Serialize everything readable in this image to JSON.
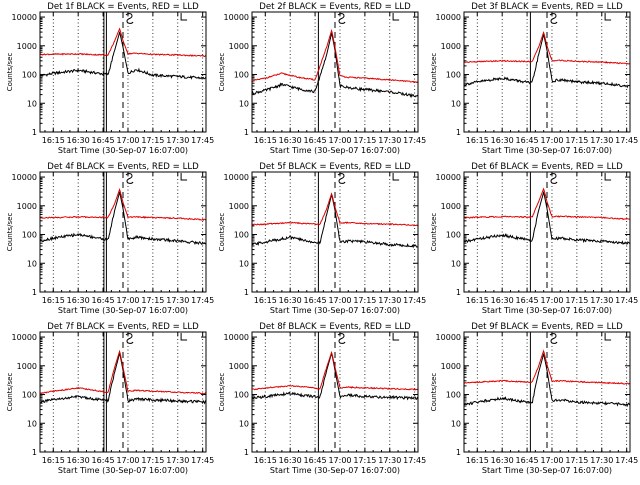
{
  "chart_data": [
    {
      "type": "line",
      "title": "Det 1f BLACK = Events, RED = LLD",
      "xlabel": "Start Time (30-Sep-07 16:07:00)",
      "ylabel": "Counts/sec",
      "yscale": "log",
      "ylim": [
        1,
        15000
      ],
      "xlim": [
        "16:07",
        "17:47"
      ],
      "x_ticks": [
        "16:15",
        "16:30",
        "16:45",
        "17:00",
        "17:15",
        "17:30",
        "17:45"
      ],
      "y_ticks": [
        "1",
        "10",
        "100",
        "1000",
        "10000"
      ],
      "grid": "vertical dotted",
      "series": [
        {
          "name": "Events",
          "color": "#000000",
          "x": [
            "16:07",
            "16:15",
            "16:30",
            "16:40",
            "16:48",
            "16:52",
            "16:55",
            "16:57",
            "17:00",
            "17:05",
            "17:15",
            "17:30",
            "17:45"
          ],
          "y": [
            90,
            110,
            140,
            115,
            100,
            700,
            3000,
            900,
            110,
            150,
            95,
            85,
            75
          ]
        },
        {
          "name": "LLD",
          "color": "#e00000",
          "x": [
            "16:07",
            "16:15",
            "16:30",
            "16:40",
            "16:48",
            "16:52",
            "16:55",
            "16:57",
            "17:00",
            "17:05",
            "17:15",
            "17:30",
            "17:45"
          ],
          "y": [
            500,
            510,
            520,
            490,
            480,
            1500,
            4000,
            1500,
            530,
            550,
            500,
            480,
            440
          ]
        }
      ],
      "vlines_solid": [
        "16:45:30",
        "16:47"
      ],
      "vline_dashed": "16:57"
    },
    {
      "type": "line",
      "title": "Det 2f BLACK = Events, RED = LLD",
      "xlabel": "Start Time (30-Sep-07 16:07:00)",
      "ylabel": "Counts/sec",
      "yscale": "log",
      "ylim": [
        1,
        15000
      ],
      "xlim": [
        "16:07",
        "17:47"
      ],
      "x_ticks": [
        "16:15",
        "16:30",
        "16:45",
        "17:00",
        "17:15",
        "17:30",
        "17:45"
      ],
      "y_ticks": [
        "1",
        "10",
        "100",
        "1000",
        "10000"
      ],
      "grid": "vertical dotted",
      "series": [
        {
          "name": "Events",
          "color": "#000000",
          "x": [
            "16:07",
            "16:15",
            "16:25",
            "16:35",
            "16:45",
            "16:52",
            "16:55",
            "16:57",
            "17:00",
            "17:05",
            "17:15",
            "17:30",
            "17:45"
          ],
          "y": [
            22,
            28,
            45,
            32,
            25,
            500,
            2800,
            700,
            40,
            35,
            30,
            25,
            18
          ]
        },
        {
          "name": "LLD",
          "color": "#e00000",
          "x": [
            "16:07",
            "16:15",
            "16:25",
            "16:35",
            "16:45",
            "16:52",
            "16:55",
            "16:57",
            "17:00",
            "17:05",
            "17:15",
            "17:30",
            "17:45"
          ],
          "y": [
            60,
            75,
            110,
            80,
            65,
            900,
            3500,
            900,
            90,
            80,
            75,
            65,
            55
          ]
        }
      ],
      "vlines_solid": [
        "16:47"
      ],
      "vline_dashed": "16:57"
    },
    {
      "type": "line",
      "title": "Det 3f BLACK = Events, RED = LLD",
      "xlabel": "Start Time (30-Sep-07 16:07:00)",
      "ylabel": "Counts/sec",
      "yscale": "log",
      "ylim": [
        1,
        15000
      ],
      "xlim": [
        "16:07",
        "17:47"
      ],
      "x_ticks": [
        "16:15",
        "16:30",
        "16:45",
        "17:00",
        "17:15",
        "17:30",
        "17:45"
      ],
      "y_ticks": [
        "1",
        "10",
        "100",
        "1000",
        "10000"
      ],
      "grid": "vertical dotted",
      "series": [
        {
          "name": "Events",
          "color": "#000000",
          "x": [
            "16:07",
            "16:15",
            "16:30",
            "16:40",
            "16:48",
            "16:52",
            "16:55",
            "16:57",
            "17:00",
            "17:05",
            "17:15",
            "17:30",
            "17:45"
          ],
          "y": [
            45,
            55,
            75,
            60,
            50,
            500,
            2500,
            700,
            60,
            65,
            55,
            50,
            40
          ]
        },
        {
          "name": "LLD",
          "color": "#e00000",
          "x": [
            "16:07",
            "16:15",
            "16:30",
            "16:40",
            "16:48",
            "16:52",
            "16:55",
            "16:57",
            "17:00",
            "17:05",
            "17:15",
            "17:30",
            "17:45"
          ],
          "y": [
            270,
            280,
            300,
            290,
            280,
            900,
            3000,
            1000,
            300,
            310,
            290,
            270,
            240
          ]
        }
      ],
      "vlines_solid": [
        "16:47"
      ],
      "vline_dashed": "16:57"
    },
    {
      "type": "line",
      "title": "Det 4f BLACK = Events, RED = LLD",
      "xlabel": "Start Time (30-Sep-07 16:07:00)",
      "ylabel": "Counts/sec",
      "yscale": "log",
      "ylim": [
        1,
        15000
      ],
      "xlim": [
        "16:07",
        "17:47"
      ],
      "x_ticks": [
        "16:15",
        "16:30",
        "16:45",
        "17:00",
        "17:15",
        "17:30",
        "17:45"
      ],
      "y_ticks": [
        "1",
        "10",
        "100",
        "1000",
        "10000"
      ],
      "grid": "vertical dotted",
      "series": [
        {
          "name": "Events",
          "color": "#000000",
          "x": [
            "16:07",
            "16:15",
            "16:30",
            "16:40",
            "16:48",
            "16:52",
            "16:55",
            "16:57",
            "17:00",
            "17:05",
            "17:15",
            "17:30",
            "17:45"
          ],
          "y": [
            60,
            75,
            100,
            80,
            65,
            700,
            3000,
            800,
            70,
            80,
            70,
            60,
            50
          ]
        },
        {
          "name": "LLD",
          "color": "#e00000",
          "x": [
            "16:07",
            "16:15",
            "16:30",
            "16:40",
            "16:48",
            "16:52",
            "16:55",
            "16:57",
            "17:00",
            "17:05",
            "17:15",
            "17:30",
            "17:45"
          ],
          "y": [
            380,
            390,
            410,
            400,
            390,
            1200,
            3800,
            1300,
            400,
            410,
            390,
            370,
            330
          ]
        }
      ],
      "vlines_solid": [
        "16:45:30",
        "16:47"
      ],
      "vline_dashed": "16:57"
    },
    {
      "type": "line",
      "title": "Det 5f BLACK = Events, RED = LLD",
      "xlabel": "Start Time (30-Sep-07 16:07:00)",
      "ylabel": "Counts/sec",
      "yscale": "log",
      "ylim": [
        1,
        15000
      ],
      "xlim": [
        "16:07",
        "17:47"
      ],
      "x_ticks": [
        "16:15",
        "16:30",
        "16:45",
        "17:00",
        "17:15",
        "17:30",
        "17:45"
      ],
      "y_ticks": [
        "1",
        "10",
        "100",
        "1000",
        "10000"
      ],
      "grid": "vertical dotted",
      "series": [
        {
          "name": "Events",
          "color": "#000000",
          "x": [
            "16:07",
            "16:15",
            "16:30",
            "16:40",
            "16:48",
            "16:52",
            "16:55",
            "16:57",
            "17:00",
            "17:05",
            "17:15",
            "17:30",
            "17:45"
          ],
          "y": [
            45,
            55,
            80,
            60,
            50,
            500,
            2500,
            700,
            55,
            60,
            55,
            45,
            40
          ]
        },
        {
          "name": "LLD",
          "color": "#e00000",
          "x": [
            "16:07",
            "16:15",
            "16:30",
            "16:40",
            "16:48",
            "16:52",
            "16:55",
            "16:57",
            "17:00",
            "17:05",
            "17:15",
            "17:30",
            "17:45"
          ],
          "y": [
            220,
            230,
            260,
            240,
            230,
            800,
            2700,
            900,
            250,
            260,
            240,
            230,
            210
          ]
        }
      ],
      "vlines_solid": [
        "16:47"
      ],
      "vline_dashed": "16:57"
    },
    {
      "type": "line",
      "title": "Det 6f BLACK = Events, RED = LLD",
      "xlabel": "Start Time (30-Sep-07 16:07:00)",
      "ylabel": "Counts/sec",
      "yscale": "log",
      "ylim": [
        1,
        15000
      ],
      "xlim": [
        "16:07",
        "17:47"
      ],
      "x_ticks": [
        "16:15",
        "16:30",
        "16:45",
        "17:00",
        "17:15",
        "17:30",
        "17:45"
      ],
      "y_ticks": [
        "1",
        "10",
        "100",
        "1000",
        "10000"
      ],
      "grid": "vertical dotted",
      "series": [
        {
          "name": "Events",
          "color": "#000000",
          "x": [
            "16:07",
            "16:15",
            "16:30",
            "16:40",
            "16:48",
            "16:52",
            "16:55",
            "16:57",
            "17:00",
            "17:05",
            "17:15",
            "17:30",
            "17:45"
          ],
          "y": [
            55,
            70,
            95,
            75,
            60,
            700,
            3000,
            800,
            70,
            75,
            65,
            58,
            50
          ]
        },
        {
          "name": "LLD",
          "color": "#e00000",
          "x": [
            "16:07",
            "16:15",
            "16:30",
            "16:40",
            "16:48",
            "16:52",
            "16:55",
            "16:57",
            "17:00",
            "17:05",
            "17:15",
            "17:30",
            "17:45"
          ],
          "y": [
            380,
            400,
            420,
            410,
            400,
            1400,
            4000,
            1400,
            420,
            430,
            410,
            390,
            340
          ]
        }
      ],
      "vlines_solid": [
        "16:47"
      ],
      "vline_dashed": "16:57"
    },
    {
      "type": "line",
      "title": "Det 7f BLACK = Events, RED = LLD",
      "xlabel": "Start Time (30-Sep-07 16:07:00)",
      "ylabel": "Counts/sec",
      "yscale": "log",
      "ylim": [
        1,
        15000
      ],
      "xlim": [
        "16:07",
        "17:47"
      ],
      "x_ticks": [
        "16:15",
        "16:30",
        "16:45",
        "17:00",
        "17:15",
        "17:30",
        "17:45"
      ],
      "y_ticks": [
        "1",
        "10",
        "100",
        "1000",
        "10000"
      ],
      "grid": "vertical dotted",
      "series": [
        {
          "name": "Events",
          "color": "#000000",
          "x": [
            "16:07",
            "16:15",
            "16:30",
            "16:40",
            "16:48",
            "16:52",
            "16:55",
            "16:57",
            "17:00",
            "17:05",
            "17:15",
            "17:30",
            "17:45"
          ],
          "y": [
            55,
            65,
            85,
            70,
            60,
            600,
            2800,
            700,
            60,
            70,
            65,
            60,
            55
          ]
        },
        {
          "name": "LLD",
          "color": "#e00000",
          "x": [
            "16:07",
            "16:15",
            "16:30",
            "16:40",
            "16:48",
            "16:52",
            "16:55",
            "16:57",
            "17:00",
            "17:05",
            "17:15",
            "17:30",
            "17:45"
          ],
          "y": [
            110,
            130,
            170,
            140,
            120,
            900,
            3300,
            900,
            130,
            140,
            130,
            120,
            110
          ]
        }
      ],
      "vlines_solid": [
        "16:45:30",
        "16:47"
      ],
      "vline_dashed": "16:57"
    },
    {
      "type": "line",
      "title": "Det 8f BLACK = Events, RED = LLD",
      "xlabel": "Start Time (30-Sep-07 16:07:00)",
      "ylabel": "Counts/sec",
      "yscale": "log",
      "ylim": [
        1,
        15000
      ],
      "xlim": [
        "16:07",
        "17:47"
      ],
      "x_ticks": [
        "16:15",
        "16:30",
        "16:45",
        "17:00",
        "17:15",
        "17:30",
        "17:45"
      ],
      "y_ticks": [
        "1",
        "10",
        "100",
        "1000",
        "10000"
      ],
      "grid": "vertical dotted",
      "series": [
        {
          "name": "Events",
          "color": "#000000",
          "x": [
            "16:07",
            "16:15",
            "16:30",
            "16:40",
            "16:48",
            "16:52",
            "16:55",
            "16:57",
            "17:00",
            "17:05",
            "17:15",
            "17:30",
            "17:45"
          ],
          "y": [
            75,
            85,
            110,
            90,
            80,
            700,
            2800,
            700,
            85,
            95,
            85,
            80,
            75
          ]
        },
        {
          "name": "LLD",
          "color": "#e00000",
          "x": [
            "16:07",
            "16:15",
            "16:30",
            "16:40",
            "16:48",
            "16:52",
            "16:55",
            "16:57",
            "17:00",
            "17:05",
            "17:15",
            "17:30",
            "17:45"
          ],
          "y": [
            150,
            170,
            200,
            180,
            160,
            900,
            3000,
            900,
            170,
            180,
            170,
            160,
            150
          ]
        }
      ],
      "vlines_solid": [
        "16:47"
      ],
      "vline_dashed": "16:57"
    },
    {
      "type": "line",
      "title": "Det 9f BLACK = Events, RED = LLD",
      "xlabel": "Start Time (30-Sep-07 16:07:00)",
      "ylabel": "Counts/sec",
      "yscale": "log",
      "ylim": [
        1,
        15000
      ],
      "xlim": [
        "16:07",
        "17:47"
      ],
      "x_ticks": [
        "16:15",
        "16:30",
        "16:45",
        "17:00",
        "17:15",
        "17:30",
        "17:45"
      ],
      "y_ticks": [
        "1",
        "10",
        "100",
        "1000",
        "10000"
      ],
      "grid": "vertical dotted",
      "series": [
        {
          "name": "Events",
          "color": "#000000",
          "x": [
            "16:07",
            "16:15",
            "16:30",
            "16:40",
            "16:48",
            "16:52",
            "16:55",
            "16:57",
            "17:00",
            "17:05",
            "17:15",
            "17:30",
            "17:45"
          ],
          "y": [
            45,
            55,
            75,
            60,
            50,
            600,
            2600,
            700,
            60,
            65,
            55,
            50,
            45
          ]
        },
        {
          "name": "LLD",
          "color": "#e00000",
          "x": [
            "16:07",
            "16:15",
            "16:30",
            "16:40",
            "16:48",
            "16:52",
            "16:55",
            "16:57",
            "17:00",
            "17:05",
            "17:15",
            "17:30",
            "17:45"
          ],
          "y": [
            260,
            270,
            300,
            280,
            270,
            1000,
            3400,
            1100,
            290,
            300,
            280,
            260,
            240
          ]
        }
      ],
      "vlines_solid": [
        "16:47"
      ],
      "vline_dashed": "16:57"
    }
  ]
}
